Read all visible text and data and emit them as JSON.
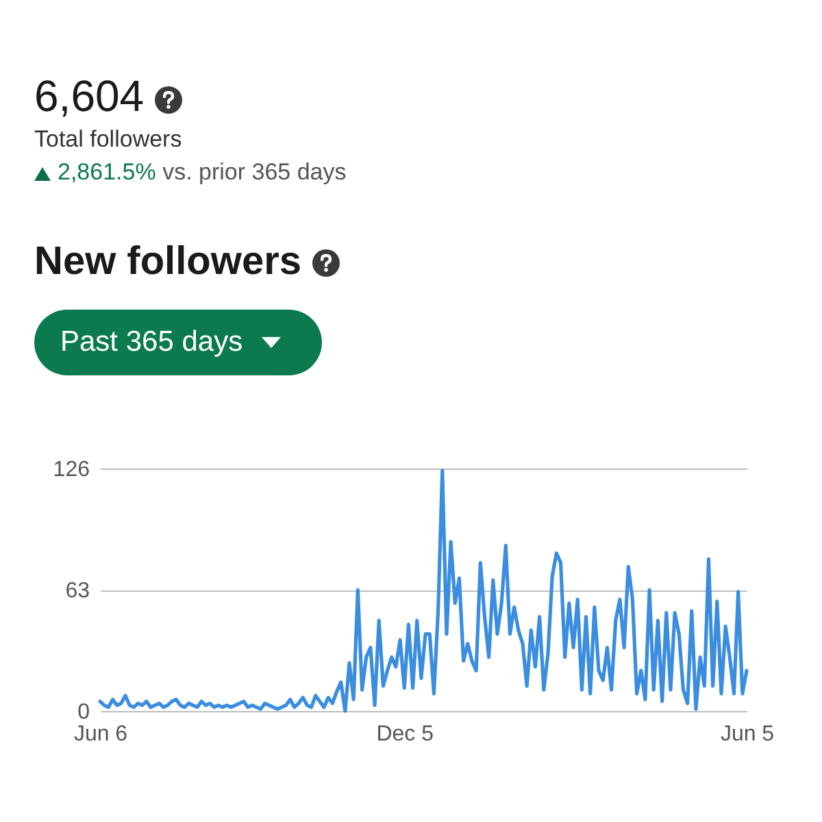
{
  "chart_data": {
    "type": "line",
    "title": "New followers",
    "annotations": [
      "6,604",
      "Total followers",
      "2,861.5%",
      "vs. prior 365 days",
      "Past 365 days"
    ],
    "categories": [
      "Jun 6",
      null,
      null,
      null,
      null,
      null,
      null,
      null,
      null,
      null,
      null,
      null,
      null,
      null,
      null,
      null,
      null,
      null,
      null,
      null,
      null,
      null,
      null,
      null,
      null,
      null,
      null,
      null,
      null,
      null,
      null,
      null,
      null,
      null,
      null,
      null,
      null,
      null,
      null,
      null,
      null,
      null,
      null,
      null,
      null,
      null,
      null,
      null,
      null,
      null,
      null,
      null,
      null,
      null,
      null,
      null,
      null,
      null,
      null,
      null,
      null,
      null,
      null,
      null,
      null,
      null,
      null,
      null,
      null,
      null,
      null,
      null,
      "Dec 5",
      null,
      null,
      null,
      null,
      null,
      null,
      null,
      null,
      null,
      null,
      null,
      null,
      null,
      null,
      null,
      null,
      null,
      null,
      null,
      null,
      null,
      null,
      null,
      null,
      null,
      null,
      null,
      null,
      null,
      null,
      null,
      null,
      null,
      null,
      null,
      null,
      null,
      null,
      null,
      null,
      null,
      null,
      null,
      null,
      null,
      null,
      null,
      null,
      null,
      null,
      null,
      null,
      null,
      null,
      null,
      null,
      null,
      null,
      null,
      null,
      null,
      null,
      null,
      null,
      null,
      null,
      null,
      null,
      null,
      null,
      null,
      null,
      null,
      null,
      null,
      null,
      null,
      null,
      null,
      null,
      "Jun 5"
    ],
    "series": [
      {
        "color": "#3b8de0",
        "values": [
          5,
          3,
          2,
          6,
          3,
          4,
          8,
          3,
          2,
          4,
          3,
          5,
          2,
          3,
          4,
          2,
          3,
          5,
          6,
          3,
          2,
          4,
          3,
          2,
          5,
          3,
          4,
          2,
          3,
          2,
          3,
          2,
          3,
          4,
          5,
          2,
          3,
          2,
          1,
          4,
          3,
          2,
          1,
          2,
          3,
          6,
          2,
          4,
          7,
          3,
          2,
          8,
          5,
          2,
          7,
          4,
          10,
          15,
          0,
          25,
          6,
          63,
          11,
          28,
          33,
          3,
          47,
          13,
          21,
          28,
          23,
          37,
          12,
          45,
          12,
          47,
          17,
          40,
          40,
          9,
          52,
          125,
          40,
          88,
          56,
          69,
          26,
          35,
          26,
          21,
          77,
          49,
          28,
          68,
          40,
          56,
          86,
          40,
          54,
          42,
          35,
          13,
          42,
          23,
          49,
          11,
          30,
          70,
          82,
          77,
          28,
          56,
          33,
          58,
          11,
          49,
          9,
          54,
          21,
          16,
          33,
          11,
          47,
          58,
          33,
          75,
          58,
          9,
          21,
          6,
          63,
          11,
          47,
          5,
          51,
          11,
          51,
          40,
          11,
          4,
          52,
          1,
          28,
          13,
          79,
          13,
          57,
          9,
          44,
          28,
          9,
          62,
          9,
          21
        ]
      }
    ],
    "ylim": [
      0,
      126
    ],
    "yticks": [
      0,
      63,
      126
    ],
    "grid": "y",
    "line_style": "solid"
  }
}
